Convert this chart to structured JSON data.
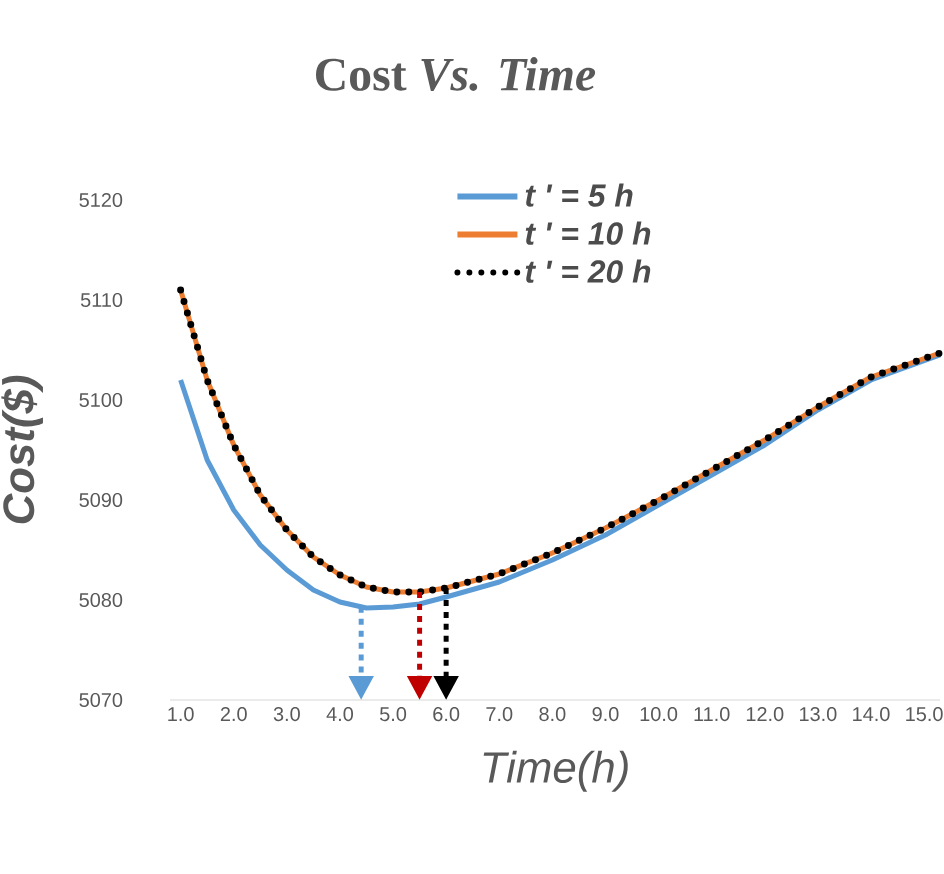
{
  "chart_data": {
    "type": "line",
    "title": "Cost *Vs. Time*",
    "xlabel": "Time(h)",
    "ylabel": "Cost($)",
    "x": [
      1,
      1.5,
      2,
      2.5,
      3,
      3.5,
      4,
      4.5,
      5,
      5.5,
      6,
      7,
      8,
      9,
      10,
      11,
      12,
      13,
      14,
      15.3
    ],
    "series": [
      {
        "name": "t ' = 5 h",
        "color": "#5b9bd5",
        "line_style": "solid",
        "values": [
          5102,
          5094,
          5089,
          5085.5,
          5083,
          5081,
          5079.8,
          5079.2,
          5079.3,
          5079.6,
          5080.3,
          5081.8,
          5084,
          5086.5,
          5089.5,
          5092.5,
          5095.5,
          5099,
          5102,
          5104.5
        ]
      },
      {
        "name": "t ' = 10 h",
        "color": "#ed7d31",
        "line_style": "solid",
        "values": [
          5111,
          5102,
          5095.5,
          5090.5,
          5087,
          5084.3,
          5082.5,
          5081.3,
          5080.8,
          5080.8,
          5081.2,
          5082.6,
          5084.7,
          5087.2,
          5090,
          5093,
          5096,
          5099.3,
          5102.3,
          5104.7
        ]
      },
      {
        "name": "t ' = 20 h",
        "color": "#000000",
        "line_style": "dotted",
        "values": [
          5111,
          5102,
          5095.5,
          5090.5,
          5087,
          5084.3,
          5082.5,
          5081.3,
          5080.8,
          5080.8,
          5081.2,
          5082.6,
          5084.7,
          5087.2,
          5090,
          5093,
          5096,
          5099.3,
          5102.3,
          5104.7
        ]
      }
    ],
    "ref_lines": [
      {
        "axis": "x",
        "value": 4.4,
        "color": "#5b9bd5",
        "line_style": "dotted"
      },
      {
        "axis": "x",
        "value": 5.5,
        "color": "#c00000",
        "line_style": "dotted"
      },
      {
        "axis": "x",
        "value": 6.0,
        "color": "#000000",
        "line_style": "dotted"
      }
    ],
    "xlim": [
      0.8,
      15.3
    ],
    "ylim": [
      5070,
      5120
    ],
    "xticks": [
      {
        "value": 1,
        "label": "1.0"
      },
      {
        "value": 2,
        "label": "2.0"
      },
      {
        "value": 3,
        "label": "3.0"
      },
      {
        "value": 4,
        "label": "4.0"
      },
      {
        "value": 5,
        "label": "5.0"
      },
      {
        "value": 6,
        "label": "6.0"
      },
      {
        "value": 7,
        "label": "7.0"
      },
      {
        "value": 8,
        "label": "8.0"
      },
      {
        "value": 9,
        "label": "9.0"
      },
      {
        "value": 10,
        "label": "10.0"
      },
      {
        "value": 11,
        "label": "11.0"
      },
      {
        "value": 12,
        "label": "12.0"
      },
      {
        "value": 13,
        "label": "13.0"
      },
      {
        "value": 14,
        "label": "14.0"
      },
      {
        "value": 15,
        "label": "15.0"
      }
    ],
    "yticks": [
      5070,
      5080,
      5090,
      5100,
      5110,
      5120
    ],
    "grid": false,
    "legend": "top",
    "marker": "none"
  }
}
